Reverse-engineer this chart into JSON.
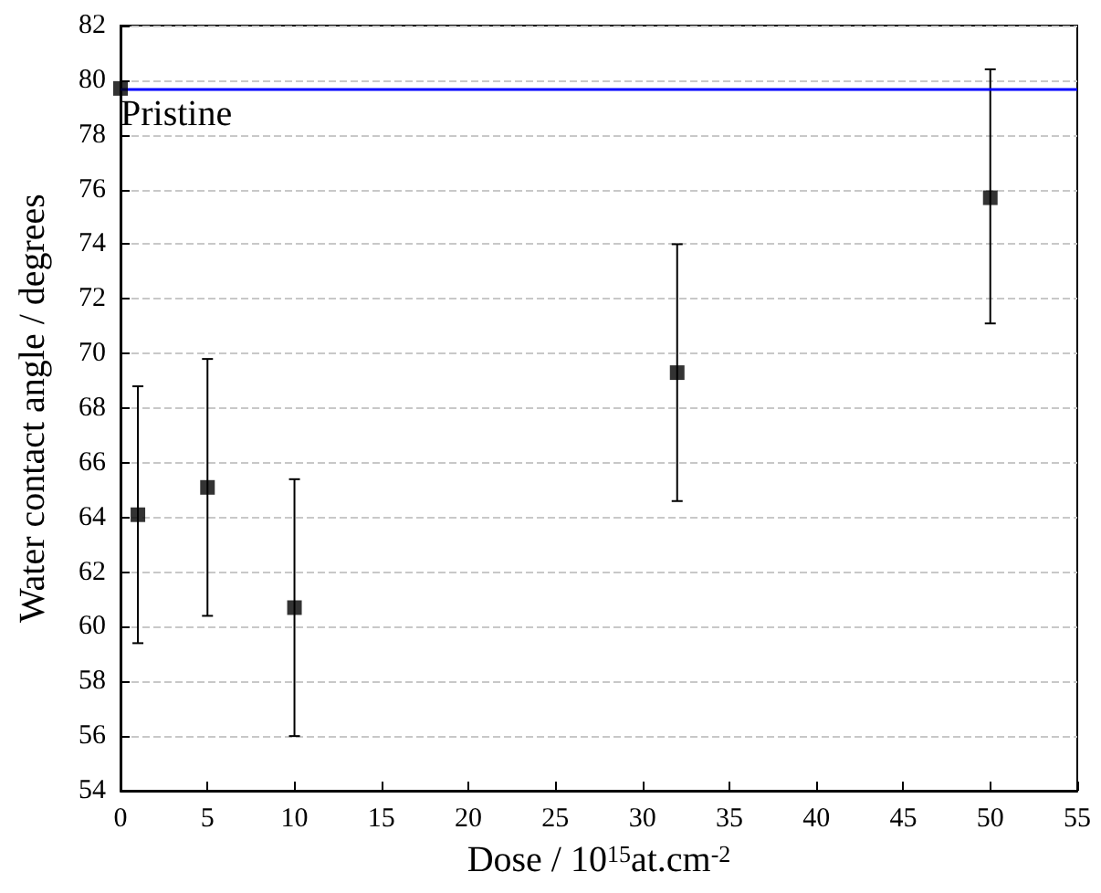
{
  "chart_data": {
    "type": "scatter",
    "xlabel": "Dose / 10$^{15}$at.cm$^{-2}$",
    "ylabel": "Water contact angle / degrees",
    "x": [
      0,
      1,
      5,
      10,
      32,
      50
    ],
    "values": [
      79.7,
      64.1,
      65.1,
      60.7,
      69.3,
      75.7
    ],
    "errors": [
      null,
      [
        59.4,
        68.8
      ],
      [
        60.4,
        69.8
      ],
      [
        56.0,
        65.4
      ],
      [
        64.6,
        74.0
      ],
      [
        71.1,
        80.4
      ]
    ],
    "color": "#000000",
    "marker": "square",
    "xlim": [
      0,
      55
    ],
    "xticks": [
      0,
      5,
      10,
      15,
      20,
      25,
      30,
      35,
      40,
      45,
      50,
      55
    ],
    "ylim": [
      54,
      82
    ],
    "yticks": [
      54,
      56,
      58,
      60,
      62,
      64,
      66,
      68,
      70,
      72,
      74,
      76,
      78,
      80,
      82
    ],
    "grid": "y",
    "ref_lines": [
      {
        "axis": "y",
        "value": 79.7,
        "label": "Pristine",
        "color": "#0000ff",
        "line_style": "solid"
      }
    ]
  }
}
